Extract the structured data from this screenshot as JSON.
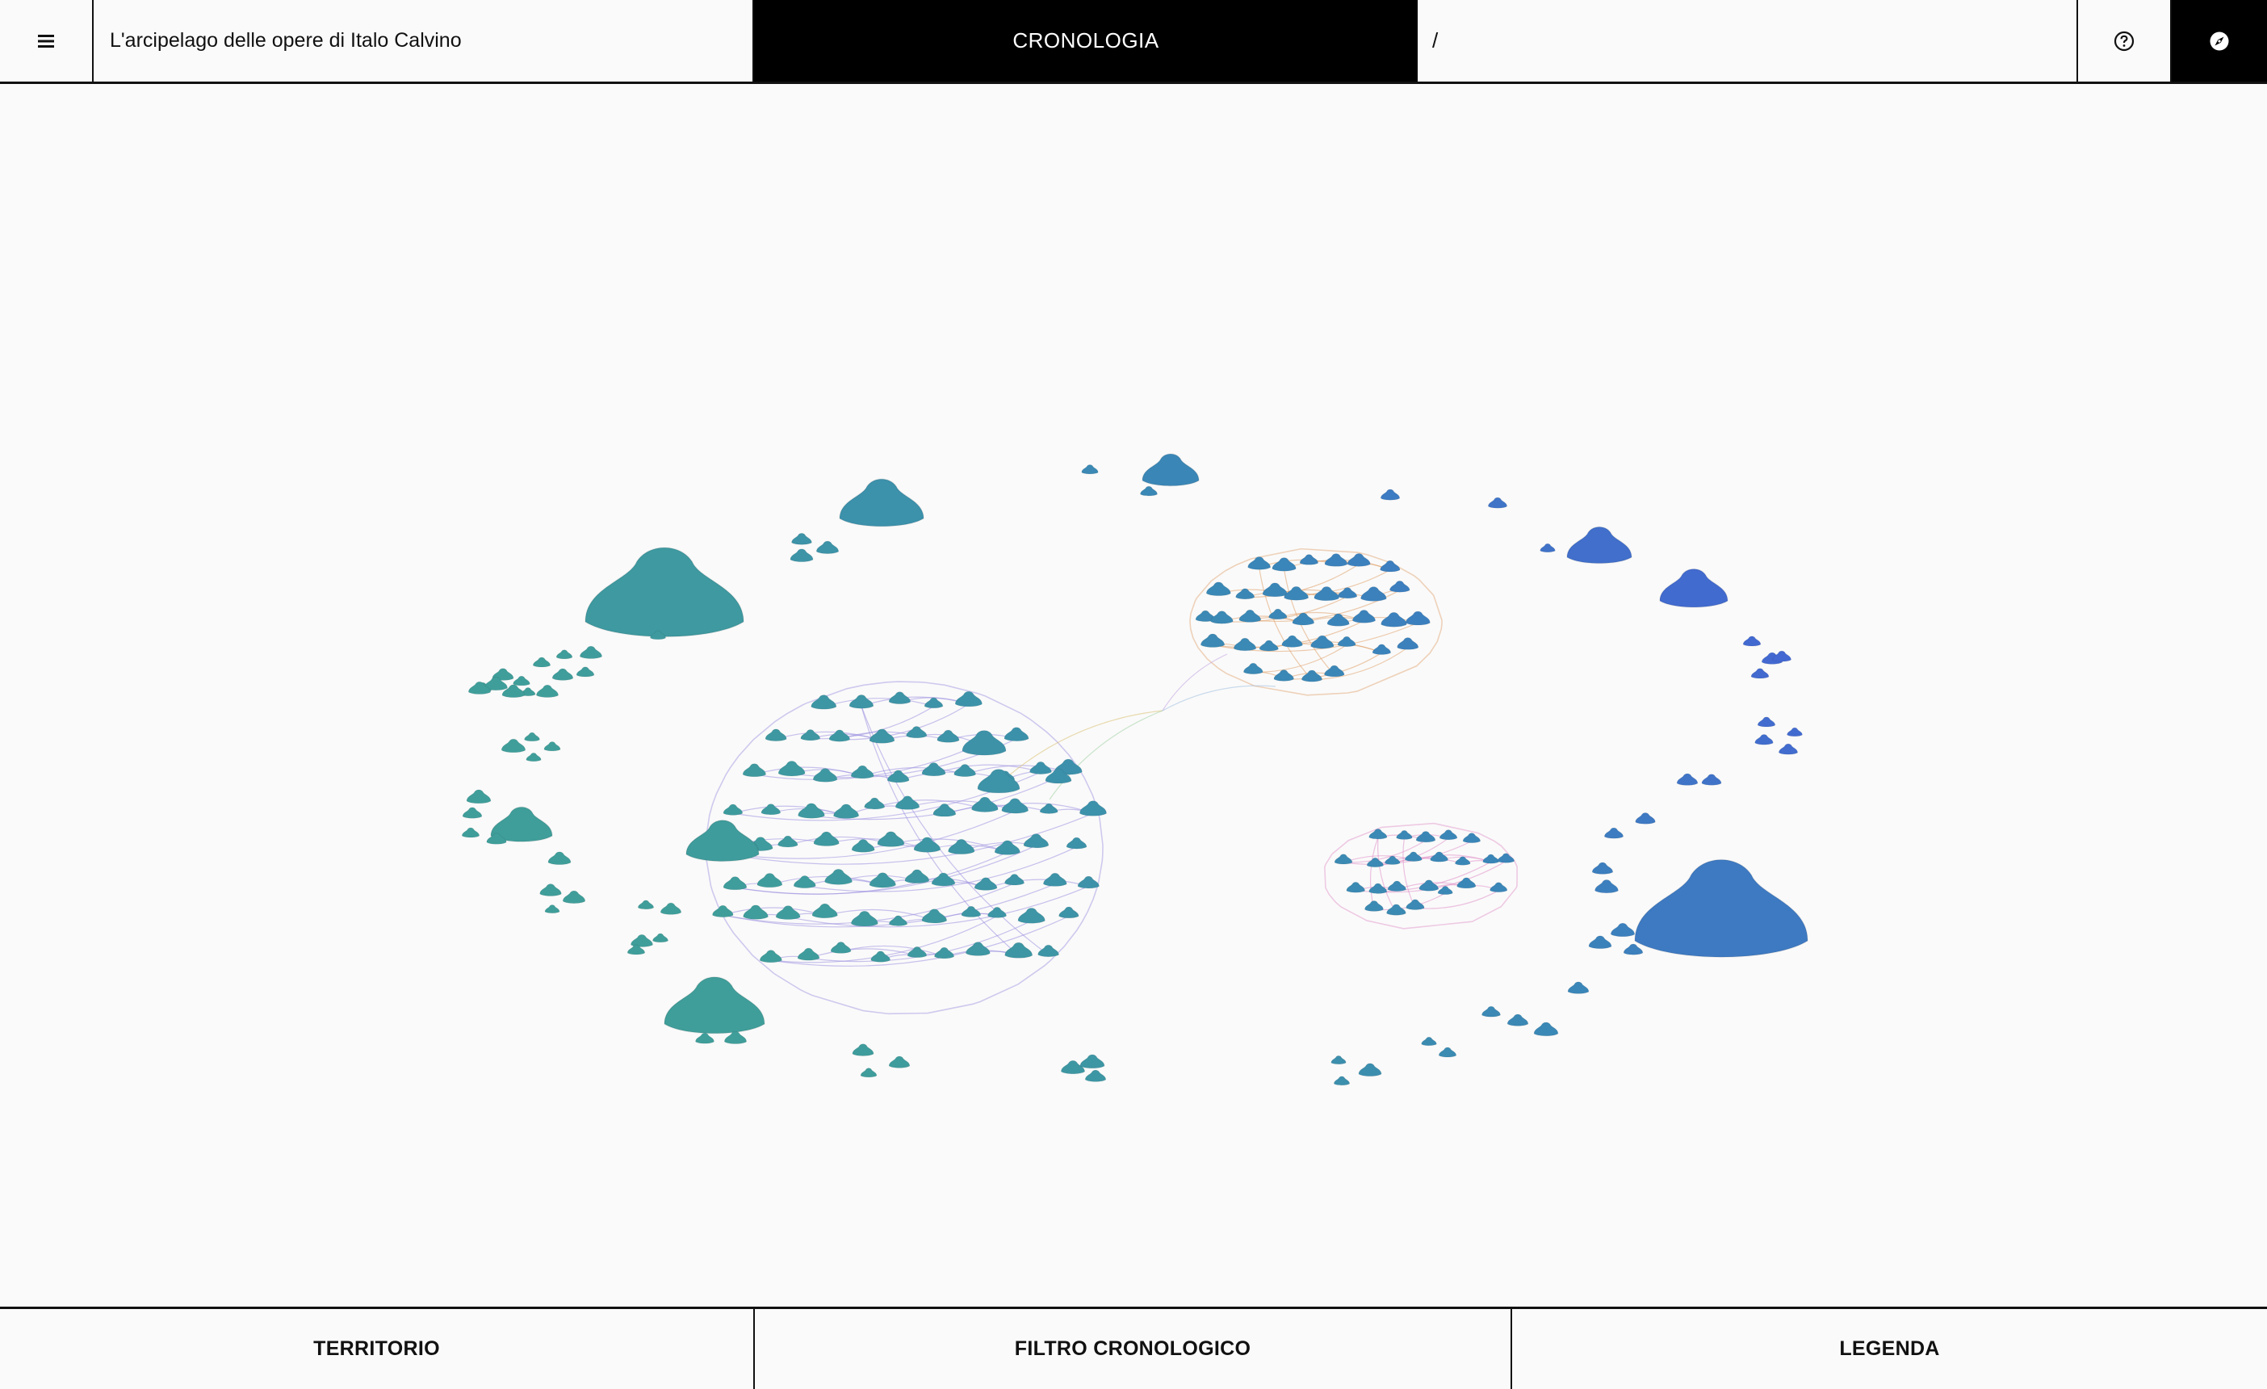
{
  "header": {
    "menu_icon": "hamburger-menu-icon",
    "app_title": "L'arcipelago delle opere di Italo Calvino",
    "view_title": "CRONOLOGIA",
    "breadcrumb": "/",
    "help_icon": "help-circle-icon",
    "compass_icon": "compass-icon"
  },
  "map": {
    "palette": {
      "early": "#3f9e9a",
      "middle": "#3a86b8",
      "late": "#4a4fe6"
    }
  },
  "footer": {
    "tab_territorio": "TERRITORIO",
    "tab_filtro": "FILTRO CRONOLOGICO",
    "tab_legenda": "LEGENDA"
  }
}
